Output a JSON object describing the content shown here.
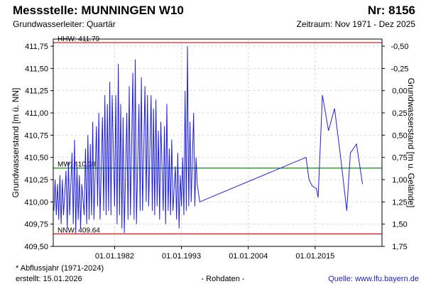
{
  "header": {
    "title": "Messstelle: MUNNINGEN W10",
    "number": "Nr: 8156",
    "aquifer": "Grundwasserleiter: Quartär",
    "period": "Zeitraum: Nov 1971 - Dez 2025"
  },
  "footer": {
    "note": "* Abflussjahr (1971-2024)",
    "created": "erstellt:  15.01.2026",
    "raw": "- Rohdaten -",
    "source": "Quelle: www.lfu.bayern.de"
  },
  "colors": {
    "line": "#1f1fe0",
    "hhw": "#e02020",
    "nnw": "#e02020",
    "mw": "#118811",
    "grid": "#d9d9d9",
    "frame": "#000000",
    "source": "#1f1fbf"
  },
  "chart_data": {
    "type": "line",
    "xlabel": "",
    "ylabel": "Grundwasserstand [m ü. NN]",
    "ylabel_right": "Grundwasserstand [m u. Gelände]",
    "xlim": [
      1971.9,
      2026.0
    ],
    "ylim": [
      409.5,
      411.75
    ],
    "ylim_right": [
      -0.5,
      1.75
    ],
    "x_ticks": [
      {
        "year": 1982,
        "label": "01.01.1982"
      },
      {
        "year": 1993,
        "label": "01.01.1993"
      },
      {
        "year": 2004,
        "label": "01.01.2004"
      },
      {
        "year": 2015,
        "label": "01.01.2015"
      }
    ],
    "y_ticks_left": [
      "411,75",
      "411,50",
      "411,25",
      "411,00",
      "410,75",
      "410,50",
      "410,25",
      "410,00",
      "409,75",
      "409,50"
    ],
    "y_ticks_right": [
      "-0,50",
      "-0,25",
      "0,00",
      "0,25",
      "0,50",
      "0,75",
      "1,00",
      "1,25",
      "1,50",
      "1,75"
    ],
    "reference_lines": [
      {
        "name": "HHW",
        "label": "HHW: 411.79",
        "value": 411.79
      },
      {
        "name": "MW",
        "label": "MW: 410.38",
        "value": 410.38
      },
      {
        "name": "NNW",
        "label": "NNW: 409.64",
        "value": 409.64
      }
    ],
    "series": [
      {
        "values": [
          [
            1972.0,
            409.9
          ],
          [
            1972.2,
            410.25
          ],
          [
            1972.4,
            409.85
          ],
          [
            1972.6,
            410.2
          ],
          [
            1972.8,
            409.8
          ],
          [
            1973.0,
            410.3
          ],
          [
            1973.2,
            409.75
          ],
          [
            1973.4,
            410.25
          ],
          [
            1973.6,
            409.85
          ],
          [
            1974.0,
            410.35
          ],
          [
            1974.2,
            409.7
          ],
          [
            1974.4,
            410.45
          ],
          [
            1974.6,
            409.85
          ],
          [
            1975.0,
            410.55
          ],
          [
            1975.2,
            409.75
          ],
          [
            1975.4,
            410.7
          ],
          [
            1975.6,
            409.65
          ],
          [
            1975.8,
            410.4
          ],
          [
            1976.0,
            409.8
          ],
          [
            1976.2,
            410.3
          ],
          [
            1976.4,
            409.7
          ],
          [
            1976.6,
            410.2
          ],
          [
            1977.0,
            409.85
          ],
          [
            1977.2,
            410.6
          ],
          [
            1977.4,
            409.75
          ],
          [
            1977.6,
            410.75
          ],
          [
            1977.8,
            409.8
          ],
          [
            1978.0,
            410.65
          ],
          [
            1978.2,
            409.85
          ],
          [
            1978.4,
            410.9
          ],
          [
            1978.6,
            409.8
          ],
          [
            1979.0,
            410.85
          ],
          [
            1979.2,
            409.95
          ],
          [
            1979.4,
            411.0
          ],
          [
            1979.6,
            409.8
          ],
          [
            1980.0,
            410.95
          ],
          [
            1980.2,
            409.9
          ],
          [
            1980.4,
            411.2
          ],
          [
            1980.6,
            409.85
          ],
          [
            1980.8,
            411.1
          ],
          [
            1981.0,
            409.9
          ],
          [
            1981.2,
            411.35
          ],
          [
            1981.4,
            409.85
          ],
          [
            1981.6,
            411.2
          ],
          [
            1982.0,
            409.95
          ],
          [
            1982.2,
            411.2
          ],
          [
            1982.4,
            409.75
          ],
          [
            1982.6,
            411.55
          ],
          [
            1982.8,
            409.85
          ],
          [
            1983.0,
            411.1
          ],
          [
            1983.2,
            409.7
          ],
          [
            1983.4,
            410.95
          ],
          [
            1983.6,
            409.65
          ],
          [
            1984.0,
            411.0
          ],
          [
            1984.2,
            409.8
          ],
          [
            1984.4,
            411.3
          ],
          [
            1984.6,
            409.85
          ],
          [
            1985.0,
            411.45
          ],
          [
            1985.2,
            409.8
          ],
          [
            1985.4,
            411.6
          ],
          [
            1985.6,
            409.75
          ],
          [
            1986.0,
            411.1
          ],
          [
            1986.2,
            409.9
          ],
          [
            1986.4,
            411.4
          ],
          [
            1986.6,
            409.9
          ],
          [
            1987.0,
            411.3
          ],
          [
            1987.2,
            410.0
          ],
          [
            1987.4,
            411.2
          ],
          [
            1987.6,
            409.95
          ],
          [
            1988.0,
            411.2
          ],
          [
            1988.2,
            409.9
          ],
          [
            1988.4,
            411.05
          ],
          [
            1988.6,
            409.85
          ],
          [
            1988.8,
            411.15
          ],
          [
            1989.0,
            409.95
          ],
          [
            1989.2,
            410.8
          ],
          [
            1989.4,
            409.8
          ],
          [
            1989.6,
            410.9
          ],
          [
            1990.0,
            409.9
          ],
          [
            1990.2,
            410.85
          ],
          [
            1990.4,
            409.75
          ],
          [
            1990.6,
            411.1
          ],
          [
            1990.8,
            409.9
          ],
          [
            1991.0,
            410.6
          ],
          [
            1991.2,
            409.85
          ],
          [
            1991.4,
            410.7
          ],
          [
            1991.6,
            409.9
          ],
          [
            1992.0,
            410.4
          ],
          [
            1992.2,
            409.8
          ],
          [
            1992.4,
            410.55
          ],
          [
            1992.6,
            409.7
          ],
          [
            1992.8,
            410.3
          ],
          [
            1993.0,
            409.95
          ],
          [
            1993.2,
            410.5
          ],
          [
            1993.4,
            409.85
          ],
          [
            1993.6,
            411.25
          ],
          [
            1993.8,
            409.9
          ],
          [
            1994.0,
            411.75
          ],
          [
            1994.2,
            409.95
          ],
          [
            1994.4,
            410.9
          ],
          [
            1994.6,
            410.0
          ],
          [
            1995.0,
            411.0
          ],
          [
            1995.2,
            409.95
          ],
          [
            1995.4,
            410.5
          ],
          [
            1995.6,
            410.2
          ],
          [
            1996.0,
            410.0
          ],
          [
            2013.5,
            410.5
          ],
          [
            2014.0,
            410.25
          ],
          [
            2014.5,
            410.18
          ],
          [
            2015.2,
            410.15
          ],
          [
            2015.5,
            410.05
          ],
          [
            2016.2,
            411.2
          ],
          [
            2017.2,
            410.8
          ],
          [
            2018.2,
            411.05
          ],
          [
            2019.2,
            410.5
          ],
          [
            2020.2,
            409.9
          ],
          [
            2020.8,
            410.55
          ],
          [
            2021.8,
            410.65
          ],
          [
            2022.8,
            410.2
          ]
        ]
      }
    ]
  }
}
